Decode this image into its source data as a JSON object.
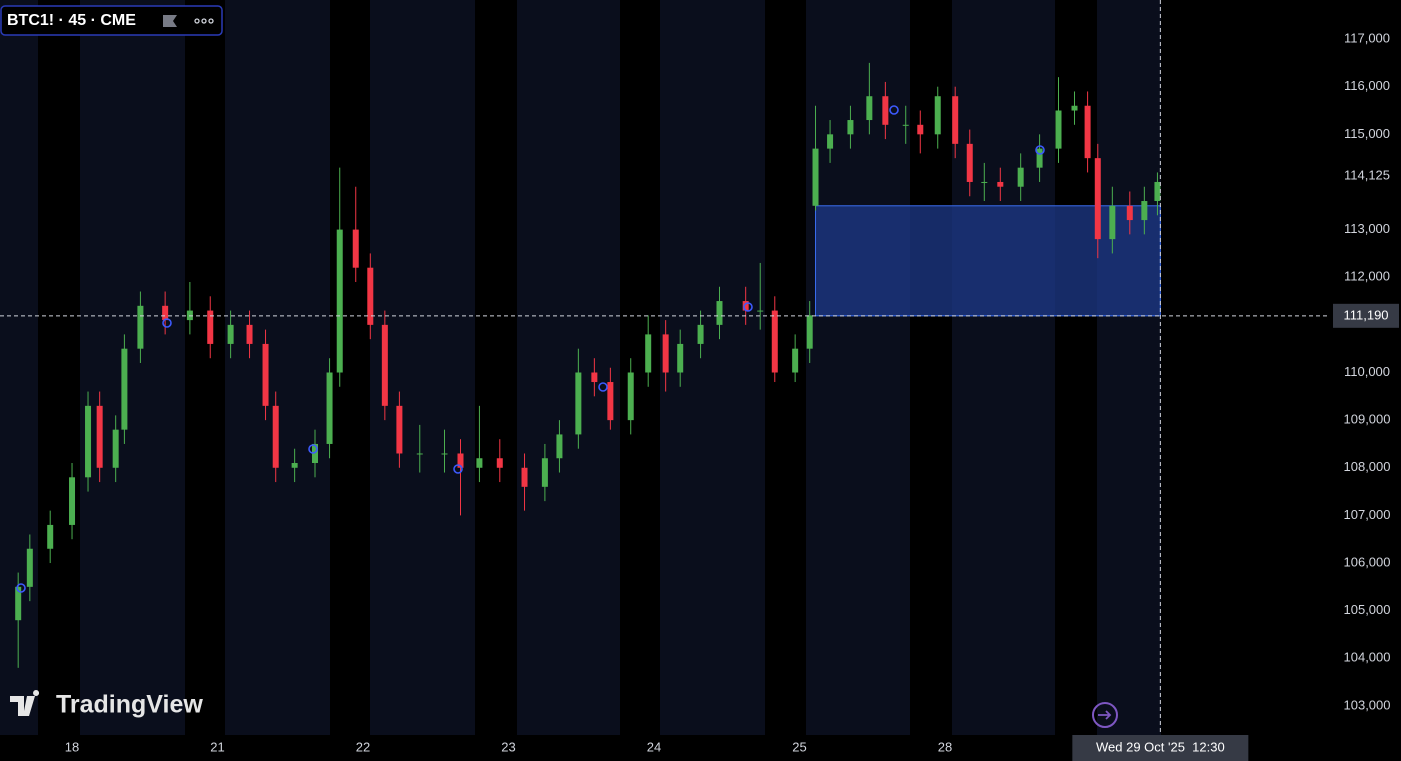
{
  "header": {
    "symbol": "BTC1! · 45 · CME"
  },
  "watermark": "TradingView",
  "chart_data": {
    "type": "candlestick",
    "x": [
      -0.37,
      -0.29,
      -0.15,
      0,
      0.11,
      0.19,
      0.3,
      0.36,
      0.47,
      0.64,
      0.81,
      0.95,
      1.09,
      1.22,
      1.33,
      1.4,
      1.53,
      1.67,
      1.77,
      1.84,
      1.95,
      2.05,
      2.15,
      2.25,
      2.39,
      2.56,
      2.67,
      2.8,
      2.94,
      3.11,
      3.25,
      3.35,
      3.48,
      3.59,
      3.7,
      3.84,
      3.96,
      4.08,
      4.18,
      4.32,
      4.45,
      4.63,
      4.73,
      4.83,
      4.97,
      5.07,
      5.11,
      5.21,
      5.35,
      5.48,
      5.59,
      5.73,
      5.83,
      5.95,
      6.07,
      6.17,
      6.27,
      6.38,
      6.52,
      6.65,
      6.78,
      6.89,
      6.98,
      7.05,
      7.15,
      7.27,
      7.37,
      7.46
    ],
    "open": [
      104800,
      105500,
      106300,
      106800,
      107800,
      109300,
      108000,
      108800,
      110500,
      111400,
      111100,
      111300,
      110600,
      111000,
      110600,
      109300,
      108000,
      108100,
      108500,
      110000,
      113000,
      112200,
      111000,
      109300,
      108300,
      108300,
      108300,
      108000,
      108200,
      108000,
      107600,
      108200,
      108700,
      110000,
      109800,
      109000,
      110000,
      110800,
      110000,
      110600,
      111000,
      111500,
      111300,
      111300,
      110000,
      110500,
      113500,
      114700,
      115000,
      115300,
      115800,
      115200,
      115200,
      115000,
      115800,
      114800,
      114000,
      114000,
      113900,
      114300,
      114700,
      115500,
      115600,
      114500,
      112800,
      113500,
      113200,
      113600
    ],
    "high": [
      105800,
      106600,
      107100,
      108100,
      109600,
      109600,
      109100,
      110800,
      111700,
      111700,
      111900,
      111600,
      111300,
      111300,
      110900,
      109600,
      108400,
      108800,
      110300,
      114300,
      113900,
      112500,
      111300,
      109600,
      108900,
      108800,
      108600,
      109300,
      108600,
      108300,
      108500,
      109000,
      110500,
      110300,
      110100,
      110300,
      111200,
      111100,
      110900,
      111300,
      111800,
      111800,
      112300,
      111600,
      110800,
      111500,
      115600,
      115300,
      115600,
      116500,
      116100,
      115600,
      115500,
      116000,
      116000,
      115100,
      114400,
      114300,
      114600,
      115000,
      116200,
      115900,
      115900,
      114800,
      113900,
      113800,
      113900,
      114200
    ],
    "low": [
      103800,
      105200,
      106000,
      106500,
      107500,
      107700,
      107700,
      108500,
      110200,
      110800,
      110800,
      110300,
      110300,
      110300,
      109000,
      107700,
      107700,
      107800,
      108200,
      109700,
      111900,
      110700,
      109000,
      108000,
      107900,
      107900,
      107000,
      107700,
      107700,
      107100,
      107300,
      107900,
      108400,
      109500,
      108800,
      108700,
      109700,
      109600,
      109700,
      110300,
      110700,
      111000,
      110900,
      109800,
      109800,
      110200,
      113400,
      114400,
      114700,
      115000,
      114900,
      114800,
      114600,
      114700,
      114500,
      113700,
      113600,
      113600,
      113600,
      114000,
      114400,
      115200,
      114200,
      112400,
      112500,
      112900,
      112900,
      113300
    ],
    "close": [
      105500,
      106300,
      106800,
      107800,
      109300,
      108000,
      108800,
      110500,
      111400,
      111100,
      111300,
      110600,
      111000,
      110600,
      109300,
      108000,
      108100,
      108500,
      110000,
      113000,
      112200,
      111000,
      109300,
      108300,
      108300,
      108300,
      108000,
      108200,
      108000,
      107600,
      108200,
      108700,
      110000,
      109800,
      109000,
      110000,
      110800,
      110000,
      110600,
      111000,
      111500,
      111300,
      111300,
      110000,
      110500,
      111200,
      114700,
      115000,
      115300,
      115800,
      115200,
      115200,
      115000,
      115800,
      114800,
      114000,
      114000,
      113900,
      114300,
      114700,
      115500,
      115600,
      114500,
      112800,
      113500,
      113200,
      113600,
      114000
    ],
    "up_color": "#4caf50",
    "down_color": "#f23645",
    "xlim": [
      -0.495,
      8.646
    ],
    "xticks": [
      {
        "value": 0,
        "label": "18"
      },
      {
        "value": 1,
        "label": "21"
      },
      {
        "value": 2,
        "label": "22"
      },
      {
        "value": 3,
        "label": "23"
      },
      {
        "value": 4,
        "label": "24"
      },
      {
        "value": 5,
        "label": "25"
      },
      {
        "value": 6,
        "label": "28"
      }
    ],
    "ylim": [
      102390,
      117820
    ],
    "yticks": [
      {
        "value": 103000,
        "label": "103,000"
      },
      {
        "value": 104000,
        "label": "104,000"
      },
      {
        "value": 105000,
        "label": "105,000"
      },
      {
        "value": 106000,
        "label": "106,000"
      },
      {
        "value": 107000,
        "label": "107,000"
      },
      {
        "value": 108000,
        "label": "108,000"
      },
      {
        "value": 109000,
        "label": "109,000"
      },
      {
        "value": 110000,
        "label": "110,000"
      },
      {
        "value": 112000,
        "label": "112,000"
      },
      {
        "value": 113000,
        "label": "113,000"
      },
      {
        "value": 115000,
        "label": "115,000"
      },
      {
        "value": 116000,
        "label": "116,000"
      },
      {
        "value": 117000,
        "label": "117,000"
      }
    ],
    "grid": false,
    "price_marker": {
      "value": 114125,
      "label": "114,125"
    },
    "zone": {
      "x": [
        5.11,
        7.48
      ],
      "y": [
        111190,
        113500
      ],
      "color": "#1e3a8a"
    },
    "crosshair": {
      "x": {
        "value": 7.48,
        "label": "Wed 29 Oct '25  12:30"
      },
      "y": {
        "value": 111190,
        "label": "111,190"
      }
    }
  }
}
